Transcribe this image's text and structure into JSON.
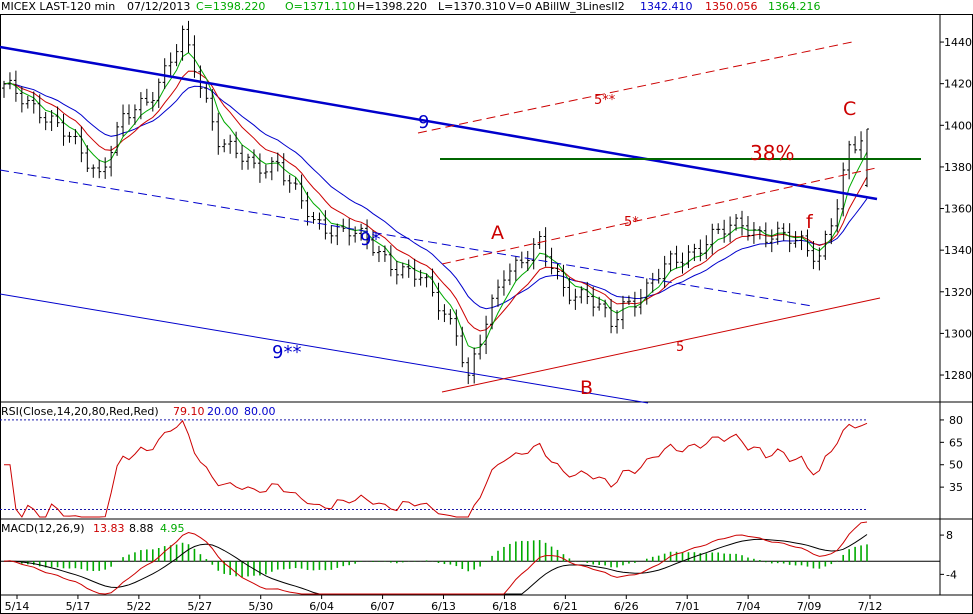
{
  "header": {
    "symbol": "MICEX LAST-120 min",
    "date": "07/12/2013",
    "close_text": "C=1398.220",
    "open_text": "O=1371.110",
    "high_text": "H=1398.220",
    "low_text": "L=1370.310",
    "volume_text": "V=0",
    "indicator_name": "ABillW_3LinesII2",
    "line1_value": "1342.410",
    "line2_value": "1350.056",
    "line3_value": "1364.216"
  },
  "rsi": {
    "label": "RSI(Close,14,20,80,Red,Red)",
    "value": "79.10",
    "low": "20.00",
    "high": "80.00"
  },
  "macd": {
    "label": "MACD(12,26,9)",
    "macd_value": "13.83",
    "signal_value": "8.88",
    "hist_value": "4.95"
  },
  "colors": {
    "green": "#00aa00",
    "red": "#cc0000",
    "blue": "#0000cc",
    "navy": "#1a1aaa",
    "dkgreen": "#006600"
  },
  "chart_data": [
    {
      "type": "bar",
      "name": "MICEX LAST-120 min",
      "x_ticks": [
        "5/14",
        "5/17",
        "5/22",
        "5/27",
        "5/30",
        "6/04",
        "6/07",
        "6/13",
        "6/18",
        "6/21",
        "6/26",
        "7/01",
        "7/04",
        "7/09",
        "7/12"
      ],
      "y_ticks": [
        1280,
        1300,
        1320,
        1340,
        1360,
        1380,
        1400,
        1420,
        1440
      ],
      "ylim": [
        1268,
        1453
      ],
      "bar_count": 146,
      "close_path": [
        [
          0,
          1418
        ],
        [
          6,
          1408
        ],
        [
          12,
          1390
        ],
        [
          16,
          1377
        ],
        [
          20,
          1402
        ],
        [
          24,
          1412
        ],
        [
          30,
          1442
        ],
        [
          32,
          1427
        ],
        [
          36,
          1395
        ],
        [
          42,
          1378
        ],
        [
          46,
          1383
        ],
        [
          52,
          1352
        ],
        [
          58,
          1350
        ],
        [
          64,
          1336
        ],
        [
          70,
          1326
        ],
        [
          76,
          1302
        ],
        [
          78,
          1278
        ],
        [
          84,
          1330
        ],
        [
          90,
          1342
        ],
        [
          94,
          1322
        ],
        [
          98,
          1318
        ],
        [
          102,
          1304
        ],
        [
          104,
          1314
        ],
        [
          108,
          1321
        ],
        [
          112,
          1334
        ],
        [
          118,
          1344
        ],
        [
          124,
          1354
        ],
        [
          128,
          1346
        ],
        [
          134,
          1345
        ],
        [
          137,
          1337
        ],
        [
          140,
          1360
        ],
        [
          142,
          1388
        ],
        [
          145,
          1398
        ]
      ],
      "annotations": [
        "9",
        "9*",
        "9**",
        "5",
        "5*",
        "5**",
        "A",
        "B",
        "C",
        "f",
        "38%"
      ]
    },
    {
      "type": "line",
      "name": "RSI",
      "y_ticks": [
        35,
        50,
        65,
        80
      ],
      "ylim": [
        15,
        90
      ],
      "levels": [
        20,
        80
      ]
    },
    {
      "type": "bar",
      "name": "MACD",
      "y_ticks": [
        -4,
        8
      ],
      "ylim": [
        -10,
        12
      ],
      "series": [
        {
          "name": "MACD"
        },
        {
          "name": "Signal"
        },
        {
          "name": "Histogram"
        }
      ]
    }
  ]
}
